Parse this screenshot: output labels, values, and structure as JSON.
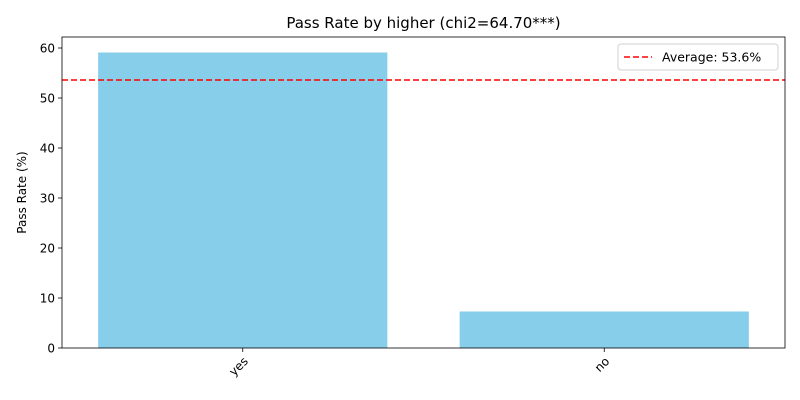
{
  "chart_data": {
    "type": "bar",
    "title": "Pass Rate by higher (chi2=64.70***)",
    "xlabel": "",
    "ylabel": "Pass Rate (%)",
    "categories": [
      "yes",
      "no"
    ],
    "values": [
      59.1,
      7.3
    ],
    "ylim": [
      0,
      62.2
    ],
    "yticks": [
      0,
      10,
      20,
      30,
      40,
      50,
      60
    ],
    "bar_color": "#87CEEB",
    "reference_line": {
      "value": 53.6,
      "label": "Average: 53.6%",
      "color": "#FF0000",
      "style": "dashed"
    },
    "legend_position": "top-right",
    "grid": false
  }
}
